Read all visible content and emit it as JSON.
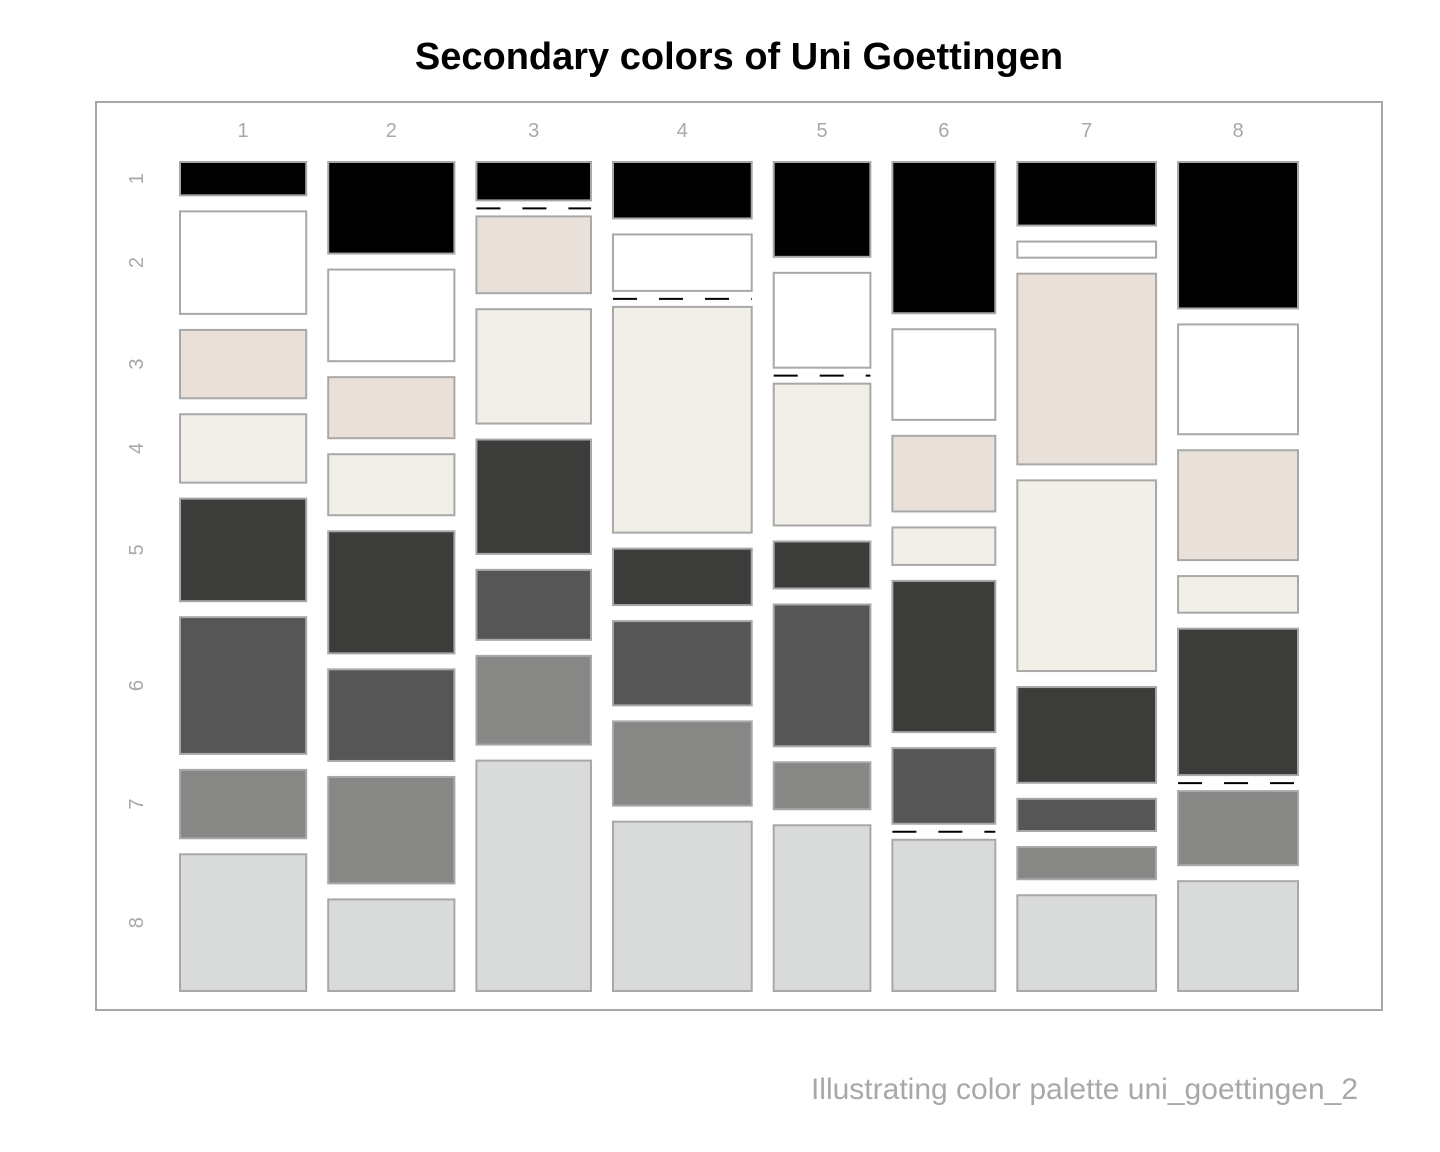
{
  "title": "Secondary colors of Uni Goettingen",
  "caption": "Illustrating color palette uni_goettingen_2",
  "chart_data": {
    "type": "mosaic",
    "title": "Secondary colors of Uni Goettingen",
    "column_labels": [
      "1",
      "2",
      "3",
      "4",
      "5",
      "6",
      "7",
      "8"
    ],
    "row_labels": [
      "1",
      "2",
      "3",
      "4",
      "5",
      "6",
      "7",
      "8"
    ],
    "palette": [
      "#000000",
      "#ffffff",
      "#e9e1d9",
      "#f2efe8",
      "#3c3c3b",
      "#565656",
      "#878786",
      "#d9dada"
    ],
    "border_color": "#a8a8a8",
    "empty_marker": "dashed",
    "column_widths": [
      0.141,
      0.141,
      0.128,
      0.155,
      0.108,
      0.115,
      0.155,
      0.134
    ],
    "cells": [
      [
        0.04,
        0.123,
        0.082,
        0.082,
        0.123,
        0.164,
        0.082,
        0.164
      ],
      [
        0.123,
        0.123,
        0.082,
        0.082,
        0.164,
        0.123,
        0.143,
        0.123
      ],
      [
        0.045,
        0,
        0.09,
        0.134,
        0.134,
        0.082,
        0.104,
        0.27
      ],
      [
        0.075,
        0.075,
        0,
        0.3,
        0.075,
        0.112,
        0.112,
        0.225
      ],
      [
        0.107,
        0.107,
        0,
        0.16,
        0.053,
        0.16,
        0.053,
        0.187
      ],
      [
        0.202,
        0.121,
        0.101,
        0.05,
        0.202,
        0.101,
        0,
        0.202
      ],
      [
        0.075,
        0.019,
        0.225,
        0.225,
        0.113,
        0.038,
        0.038,
        0.113
      ],
      [
        0.172,
        0.129,
        0.129,
        0.043,
        0.172,
        0,
        0.087,
        0.129
      ]
    ]
  }
}
